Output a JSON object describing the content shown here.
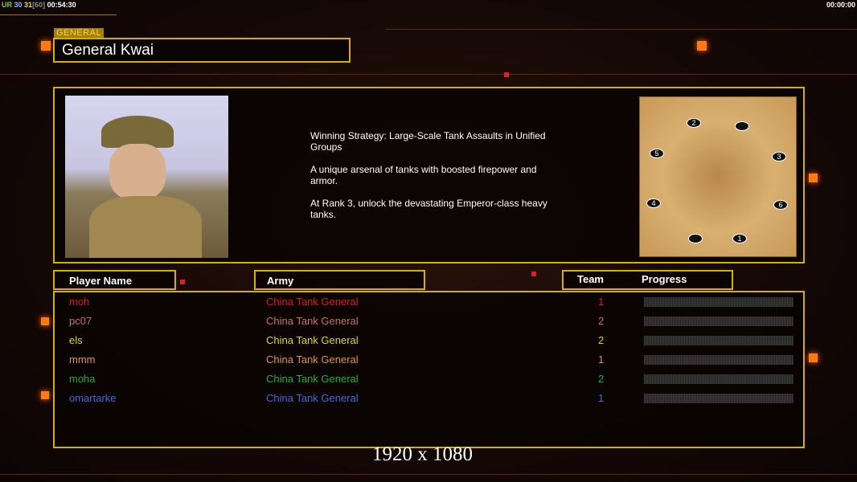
{
  "hud": {
    "ur": "UR",
    "fps1": "30",
    "fps2": "31",
    "fps_max": "[60]",
    "elapsed": "00:54:30",
    "timer": "00:00:00"
  },
  "general_tag": "GENERAL",
  "general_name": "General Kwai",
  "description": "Winning Strategy: Large-Scale Tank Assaults in Unified\n Groups\n\nA unique arsenal of tanks with boosted firepower and\n armor.\n\nAt Rank 3, unlock the devastating Emperor-class heavy\n tanks.",
  "map": {
    "positions": [
      "1",
      "2",
      "3",
      "4",
      "5",
      "6"
    ]
  },
  "headers": {
    "player": "Player Name",
    "army": "Army",
    "team": "Team",
    "progress": "Progress"
  },
  "players": [
    {
      "name": "moh",
      "army": "China Tank General",
      "team": "1",
      "progress": 0,
      "color": "#e01818"
    },
    {
      "name": "pc07",
      "army": "China Tank General",
      "team": "2",
      "progress": 0,
      "color": "#c87070"
    },
    {
      "name": "els",
      "army": "China Tank General",
      "team": "2",
      "progress": 0,
      "color": "#d8d828"
    },
    {
      "name": "mmm",
      "army": "China Tank General",
      "team": "1",
      "progress": 0,
      "color": "#e09838"
    },
    {
      "name": "moha",
      "army": "China Tank General",
      "team": "2",
      "progress": 0,
      "color": "#28b028"
    },
    {
      "name": "omartarke",
      "army": "China Tank General",
      "team": "1",
      "progress": 0,
      "color": "#4868e0"
    }
  ],
  "resolution": "1920 x 1080"
}
